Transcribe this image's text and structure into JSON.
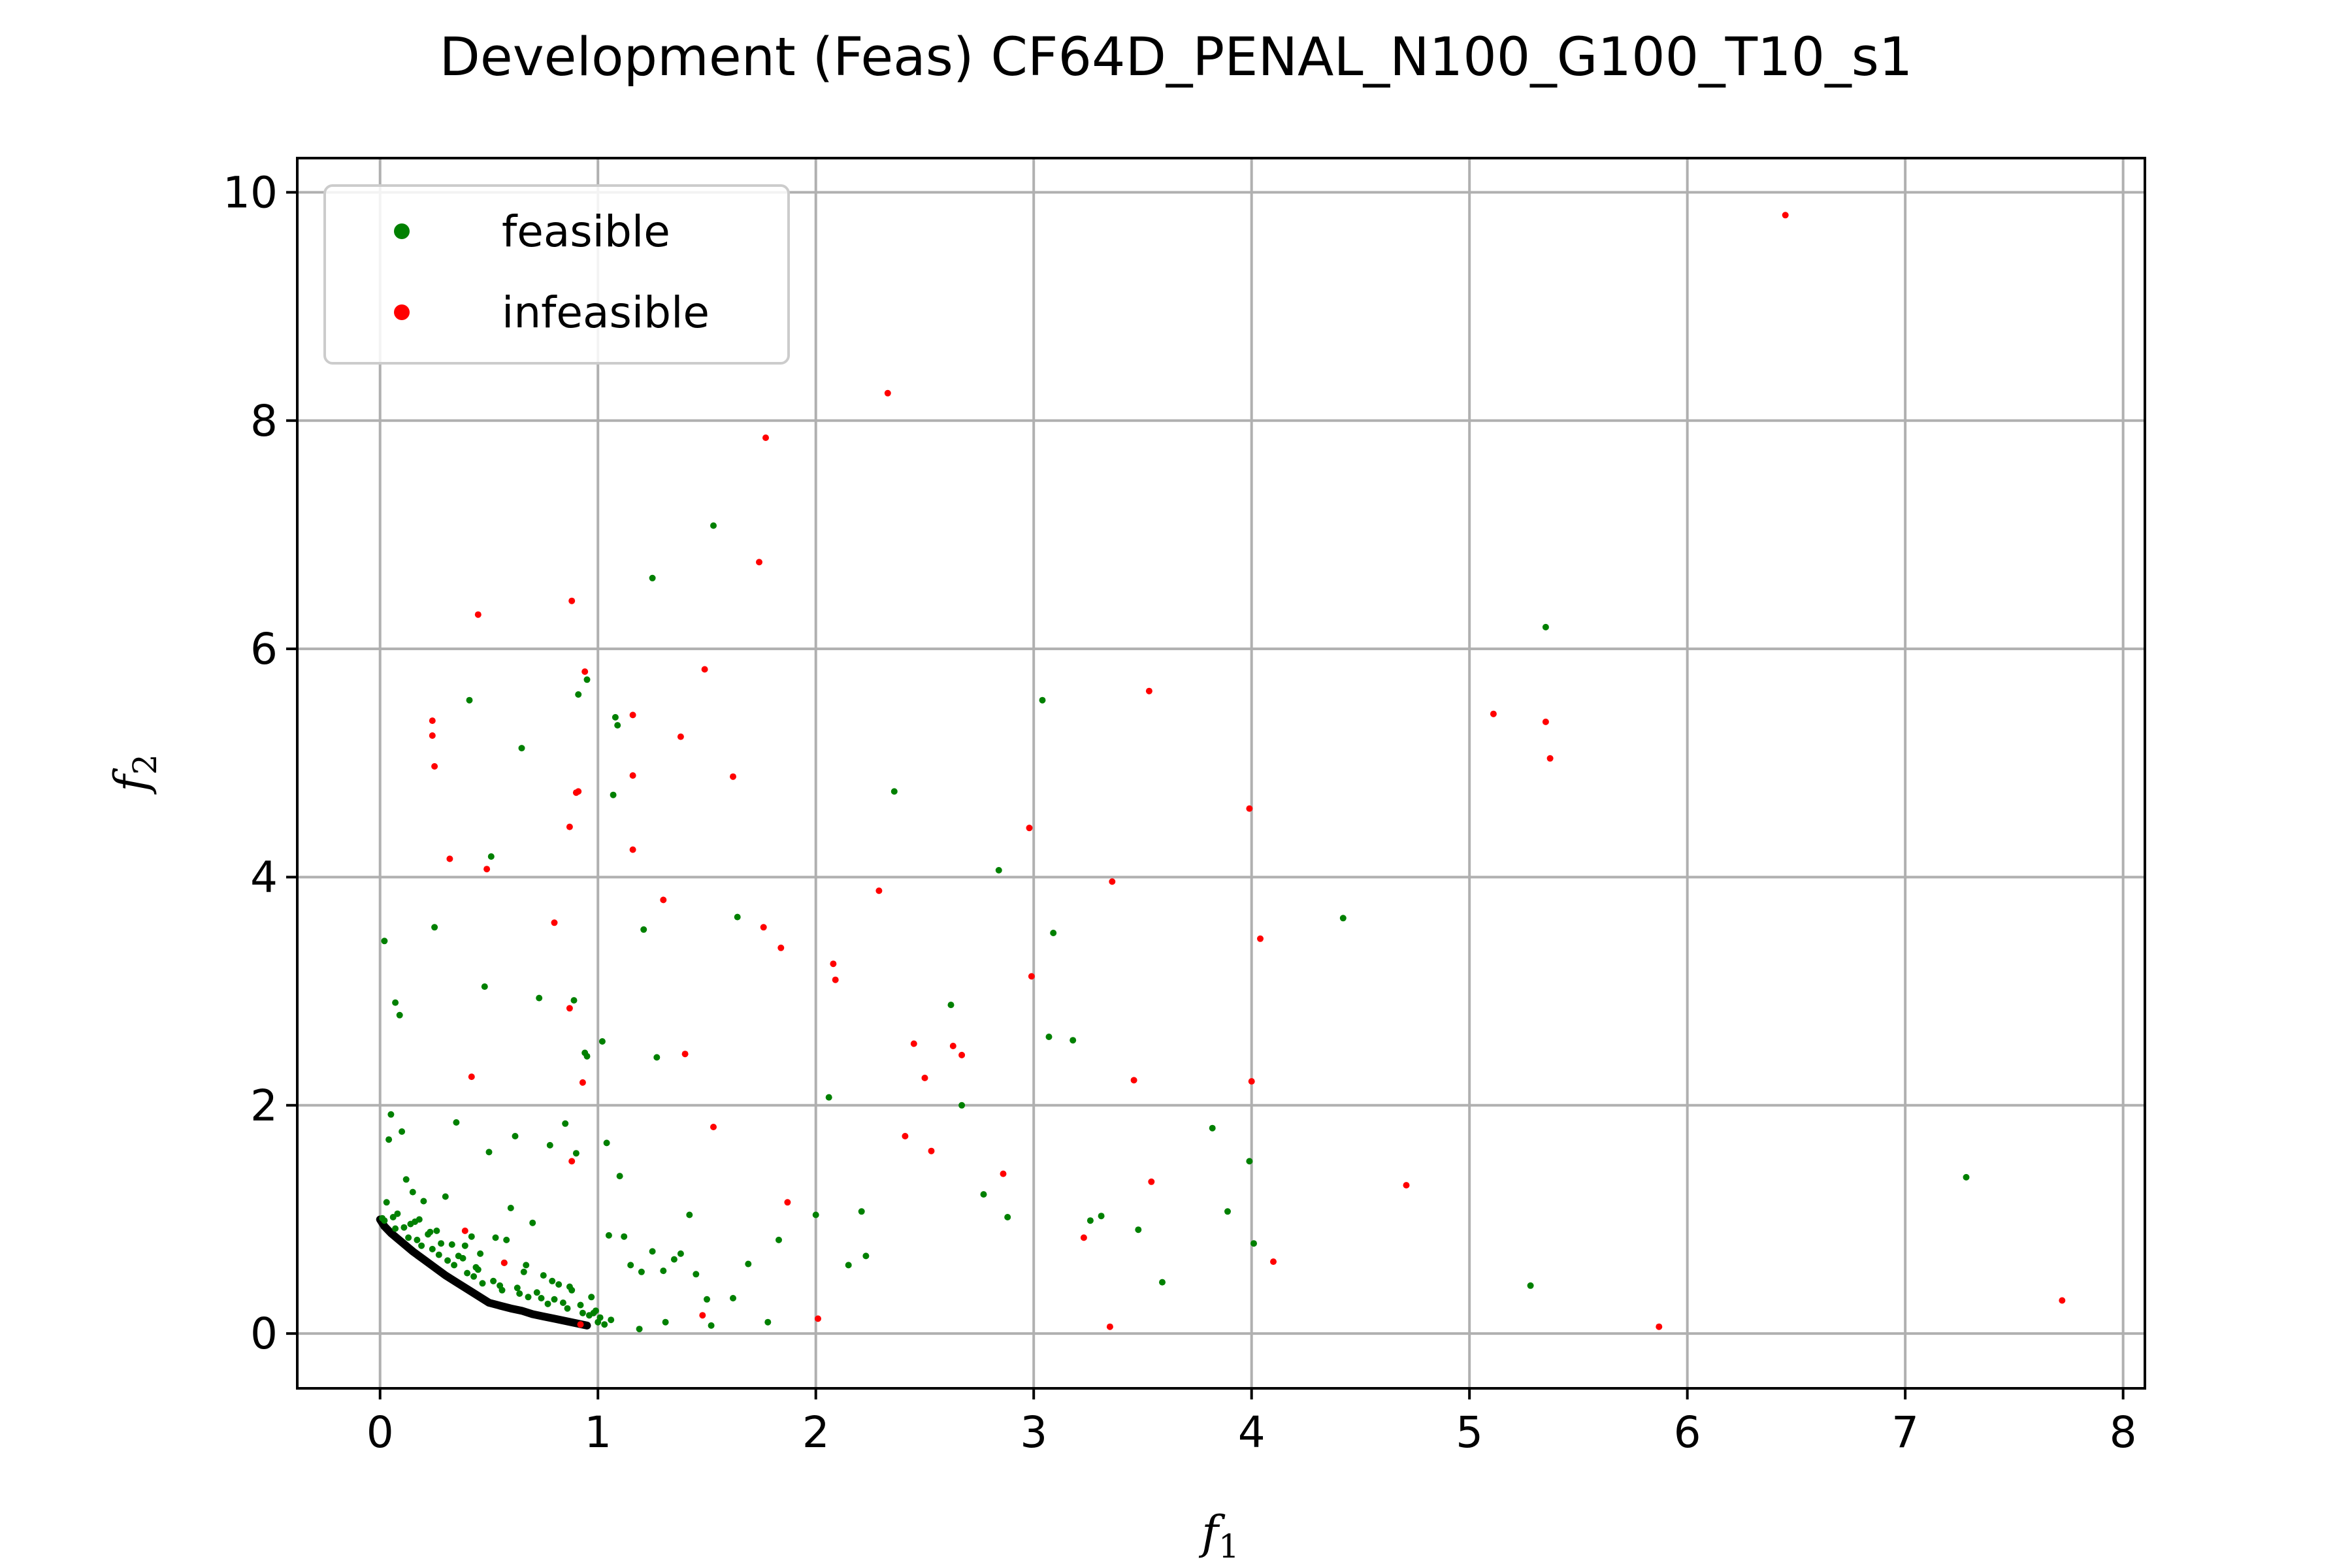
{
  "chart_data": {
    "type": "scatter",
    "title": "Development (Feas) CF64D_PENAL_N100_G100_T10_s1",
    "xlabel": "f",
    "xlabel_sub": "1",
    "ylabel": "f",
    "ylabel_sub": "2",
    "xlim": [
      -0.38,
      8.1
    ],
    "ylim": [
      -0.48,
      10.3
    ],
    "xticks": [
      0,
      1,
      2,
      3,
      4,
      5,
      6,
      7,
      8
    ],
    "yticks": [
      0,
      2,
      4,
      6,
      8,
      10
    ],
    "grid": true,
    "legend_position": "top-left",
    "colors": {
      "feasible": "#008000",
      "infeasible": "#ff0000",
      "front": "#000000"
    },
    "front": {
      "x": [
        0.0,
        0.02,
        0.05,
        0.1,
        0.15,
        0.2,
        0.25,
        0.3,
        0.35,
        0.4,
        0.45,
        0.5,
        0.55,
        0.6,
        0.65,
        0.7,
        0.75,
        0.8,
        0.85,
        0.9,
        0.95
      ],
      "y": [
        1.0,
        0.94,
        0.88,
        0.8,
        0.72,
        0.65,
        0.58,
        0.51,
        0.45,
        0.39,
        0.33,
        0.27,
        0.245,
        0.22,
        0.2,
        0.17,
        0.15,
        0.13,
        0.11,
        0.09,
        0.07
      ]
    },
    "series": [
      {
        "name": "feasible",
        "x": [
          1.53,
          1.25,
          0.95,
          0.91,
          0.41,
          0.65,
          1.08,
          1.09,
          1.07,
          0.51,
          2.36,
          3.04,
          5.35,
          0.02,
          0.25,
          0.07,
          0.09,
          0.48,
          0.73,
          0.89,
          1.02,
          0.94,
          0.95,
          1.27,
          1.21,
          1.64,
          2.84,
          3.09,
          4.42,
          2.62,
          2.67,
          2.06,
          3.07,
          3.18,
          3.82,
          3.89,
          3.99,
          4.01,
          3.59,
          3.48,
          3.31,
          3.26,
          5.28,
          7.28,
          2.88,
          2.77,
          2.0,
          1.83,
          1.78,
          1.69,
          1.62,
          1.52,
          1.42,
          1.31,
          1.19,
          2.23,
          2.15,
          2.21,
          0.05,
          0.1,
          0.15,
          0.2,
          0.3,
          0.35,
          0.42,
          0.5,
          0.58,
          0.62,
          0.7,
          0.78,
          0.85,
          0.9,
          1.04,
          1.12,
          1.2,
          0.12,
          0.18,
          0.26,
          0.33,
          0.38,
          0.45,
          0.53,
          0.6,
          0.67,
          0.75,
          0.82,
          0.88,
          0.97,
          1.05,
          1.15,
          1.25,
          1.35,
          1.45,
          0.08,
          0.14,
          0.22,
          0.28,
          0.36,
          0.44,
          0.52,
          0.63,
          0.72,
          0.8,
          0.92,
          0.99,
          1.01,
          1.03,
          0.98,
          0.04,
          0.03,
          0.06,
          0.11,
          0.17,
          0.24,
          0.31,
          0.4,
          0.47,
          0.56,
          0.68,
          0.77,
          0.86,
          0.93,
          1.0,
          0.02,
          0.07,
          0.13,
          0.19,
          0.27,
          0.34,
          0.43,
          0.55,
          0.64,
          0.74,
          0.84,
          0.96,
          1.06,
          1.1,
          1.3,
          1.5,
          1.38,
          0.01,
          0.16,
          0.23,
          0.39,
          0.46,
          0.57,
          0.66,
          0.79,
          0.87
        ],
        "y": [
          7.08,
          6.62,
          5.73,
          5.6,
          5.55,
          5.13,
          5.4,
          5.33,
          4.72,
          4.18,
          4.75,
          5.55,
          6.19,
          3.44,
          3.56,
          2.9,
          2.79,
          3.04,
          2.94,
          2.92,
          2.56,
          2.46,
          2.43,
          2.42,
          3.54,
          3.65,
          4.06,
          3.51,
          3.64,
          2.88,
          2.0,
          2.07,
          2.6,
          2.57,
          1.8,
          1.07,
          1.51,
          0.79,
          0.45,
          0.91,
          1.03,
          0.99,
          0.42,
          1.37,
          1.02,
          1.22,
          1.04,
          0.82,
          0.1,
          0.61,
          0.31,
          0.07,
          1.04,
          0.1,
          0.04,
          0.68,
          0.6,
          1.07,
          1.92,
          1.77,
          1.24,
          1.16,
          1.2,
          1.85,
          0.85,
          1.59,
          0.82,
          1.73,
          0.97,
          1.65,
          1.84,
          1.58,
          1.67,
          0.85,
          0.54,
          1.35,
          1.0,
          0.9,
          0.78,
          0.66,
          0.56,
          0.84,
          1.1,
          0.6,
          0.51,
          0.43,
          0.38,
          0.32,
          0.86,
          0.6,
          0.72,
          0.65,
          0.52,
          1.05,
          0.96,
          0.87,
          0.79,
          0.68,
          0.58,
          0.46,
          0.4,
          0.36,
          0.3,
          0.25,
          0.2,
          0.14,
          0.08,
          0.18,
          1.7,
          1.15,
          1.02,
          0.93,
          0.82,
          0.74,
          0.64,
          0.53,
          0.44,
          0.38,
          0.32,
          0.26,
          0.22,
          0.18,
          0.1,
          0.99,
          0.92,
          0.84,
          0.77,
          0.69,
          0.6,
          0.5,
          0.42,
          0.35,
          0.31,
          0.27,
          0.16,
          0.12,
          1.38,
          0.55,
          0.3,
          0.7,
          1.01,
          0.98,
          0.89,
          0.77,
          0.7,
          0.62,
          0.54,
          0.46,
          0.41
        ]
      },
      {
        "name": "infeasible",
        "x": [
          6.45,
          2.33,
          1.77,
          1.74,
          0.45,
          0.88,
          0.94,
          1.49,
          0.24,
          0.24,
          0.25,
          1.16,
          0.91,
          0.9,
          1.38,
          1.16,
          1.62,
          0.87,
          0.32,
          0.49,
          1.16,
          0.8,
          1.3,
          1.76,
          1.84,
          2.08,
          2.09,
          2.29,
          2.98,
          2.99,
          3.36,
          3.53,
          3.99,
          4.04,
          5.11,
          5.35,
          5.37,
          0.42,
          0.39,
          0.57,
          0.87,
          0.93,
          1.4,
          1.53,
          0.88,
          2.45,
          2.5,
          2.63,
          2.67,
          2.41,
          2.86,
          2.53,
          3.46,
          4.0,
          3.54,
          4.71,
          4.1,
          3.23,
          3.35,
          1.87,
          2.01,
          1.48,
          5.87,
          7.72,
          0.92
        ],
        "y": [
          9.8,
          8.24,
          7.85,
          6.76,
          6.3,
          6.42,
          5.8,
          5.82,
          5.37,
          5.24,
          4.97,
          5.42,
          4.75,
          4.74,
          5.23,
          4.89,
          4.88,
          4.44,
          4.16,
          4.07,
          4.24,
          3.6,
          3.8,
          3.56,
          3.38,
          3.24,
          3.1,
          3.88,
          4.43,
          3.13,
          3.96,
          5.63,
          4.6,
          3.46,
          5.43,
          5.36,
          5.04,
          2.25,
          0.9,
          0.62,
          2.85,
          2.2,
          2.45,
          1.81,
          1.51,
          2.54,
          2.24,
          2.52,
          2.44,
          1.73,
          1.4,
          1.6,
          2.22,
          2.21,
          1.33,
          1.3,
          0.63,
          0.84,
          0.06,
          1.15,
          0.13,
          0.16,
          0.06,
          0.29,
          0.08
        ]
      }
    ]
  }
}
